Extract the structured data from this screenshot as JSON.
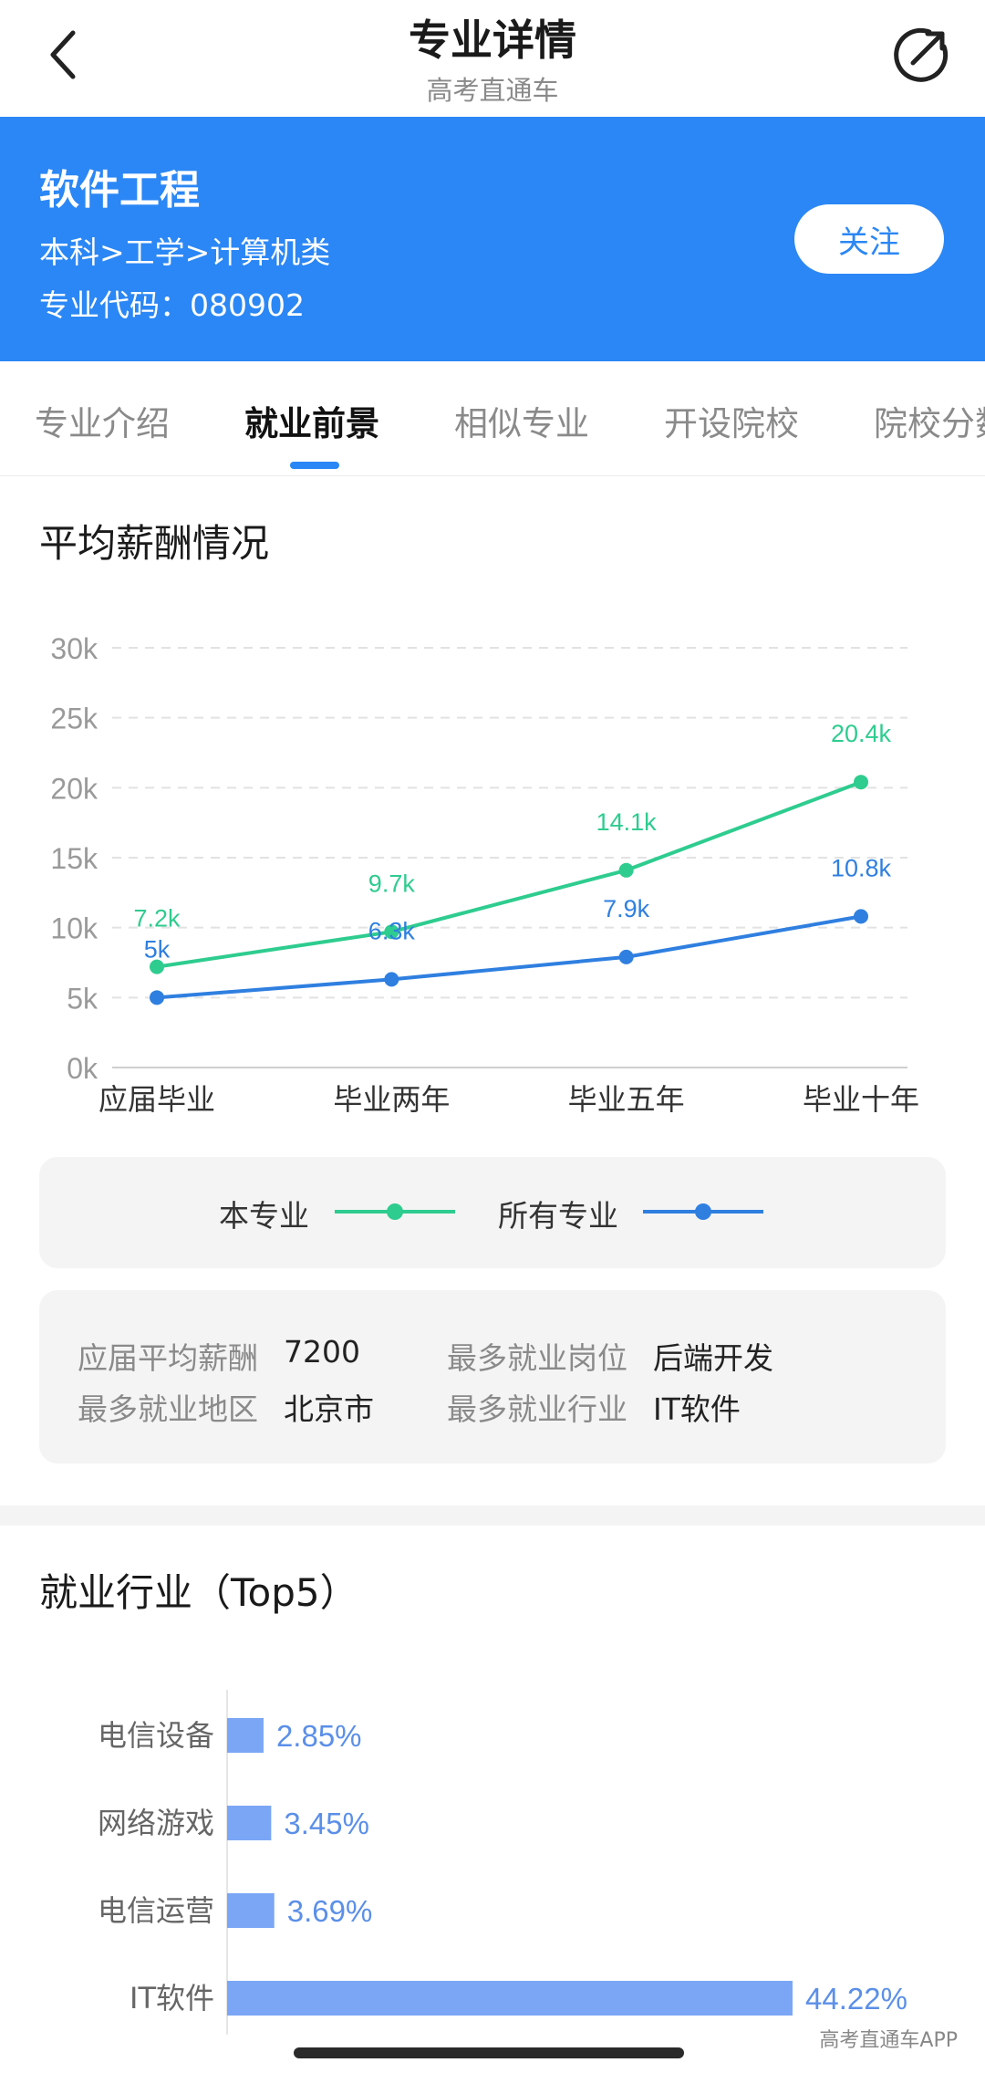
{
  "header": {
    "title": "专业详情",
    "subtitle": "高考直通车",
    "back_icon": "chevron-left-icon",
    "share_icon": "share-icon"
  },
  "banner": {
    "major_name": "软件工程",
    "path": "本科>工学>计算机类",
    "code": "专业代码：080902",
    "follow_label": "关注",
    "bg_color": "#2b87f5"
  },
  "tabs": [
    "专业介绍",
    "就业前景",
    "相似专业",
    "开设院校",
    "院校分数"
  ],
  "active_tab": 1,
  "salary_section": {
    "title": "平均薪酬情况"
  },
  "chart_data": [
    {
      "type": "line",
      "title": "",
      "xlabel": "",
      "ylabel": "",
      "categories": [
        "应届毕业",
        "毕业两年",
        "毕业五年",
        "毕业十年"
      ],
      "yticks": [
        "0k",
        "5k",
        "10k",
        "15k",
        "20k",
        "25k",
        "30k"
      ],
      "ylim": [
        0,
        30
      ],
      "grid": true,
      "series": [
        {
          "name": "本专业",
          "values": [
            7.2,
            9.7,
            14.1,
            20.4
          ],
          "labels": [
            "7.2k",
            "9.7k",
            "14.1k",
            "20.4k"
          ],
          "color": "#2ecc8f"
        },
        {
          "name": "所有专业",
          "values": [
            5,
            6.3,
            7.9,
            10.8
          ],
          "labels": [
            "5k",
            "6.3k",
            "7.9k",
            "10.8k"
          ],
          "color": "#2f7fe0"
        }
      ]
    },
    {
      "type": "bar",
      "title": "",
      "categories": [
        "电信设备",
        "网络游戏",
        "电信运营",
        "IT软件"
      ],
      "values": [
        2.85,
        3.45,
        3.69,
        44.22
      ],
      "labels": [
        "2.85%",
        "3.45%",
        "3.69%",
        "44.22%"
      ],
      "color": "#7aa6f5"
    }
  ],
  "legend": {
    "items": [
      {
        "label": "本专业",
        "color": "#2ecc8f"
      },
      {
        "label": "所有专业",
        "color": "#2f7fe0"
      }
    ]
  },
  "stats": {
    "fresh_salary_label": "应届平均薪酬",
    "fresh_salary_value": "7200",
    "top_job_label": "最多就业岗位",
    "top_job_value": "后端开发",
    "top_region_label": "最多就业地区",
    "top_region_value": "北京市",
    "top_industry_label": "最多就业行业",
    "top_industry_value": "IT软件"
  },
  "industry_section": {
    "title": "就业行业（Top5）"
  },
  "watermark": "高考直通车APP"
}
